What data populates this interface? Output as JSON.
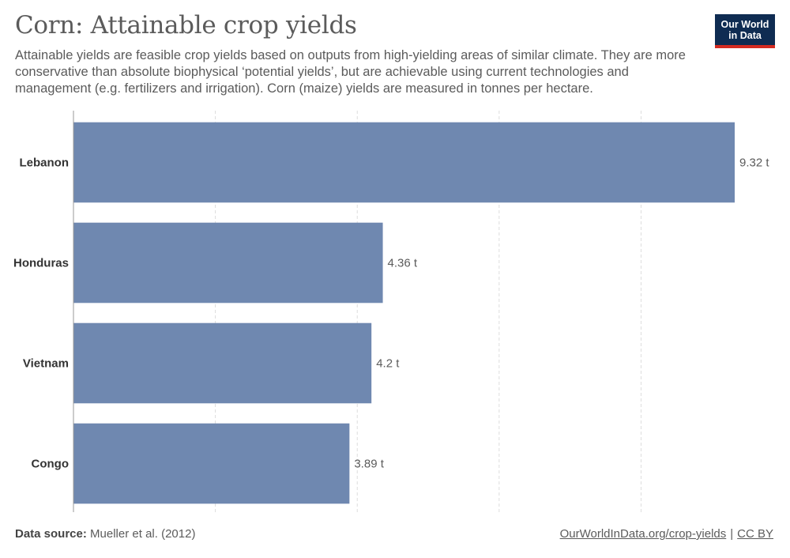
{
  "title": "Corn: Attainable crop yields",
  "subtitle": "Attainable yields are feasible crop yields based on outputs from high-yielding areas of similar climate. They are more conservative than absolute biophysical ‘potential yields’, but are achievable using current technologies and management (e.g. fertilizers and irrigation). Corn (maize) yields are measured in tonnes per hectare.",
  "logo": {
    "line1": "Our World",
    "line2": "in Data"
  },
  "footer": {
    "source_label": "Data source:",
    "source_text": "Mueller et al. (2012)",
    "link_text": "OurWorldInData.org/crop-yields",
    "separator": "|",
    "license_text": "CC BY"
  },
  "colors": {
    "bar": "#6f88b0",
    "grid": "#dddddd",
    "text": "#5b5b5b",
    "label": "#333333"
  },
  "chart_data": {
    "type": "bar",
    "orientation": "horizontal",
    "categories": [
      "Lebanon",
      "Honduras",
      "Vietnam",
      "Congo"
    ],
    "values": [
      9.32,
      4.36,
      4.2,
      3.89
    ],
    "value_labels": [
      "9.32 t",
      "4.36 t",
      "4.2 t",
      "3.89 t"
    ],
    "xlim": [
      0,
      9.32
    ],
    "grid": true,
    "gridline_values": [
      2,
      4,
      6,
      8
    ]
  }
}
